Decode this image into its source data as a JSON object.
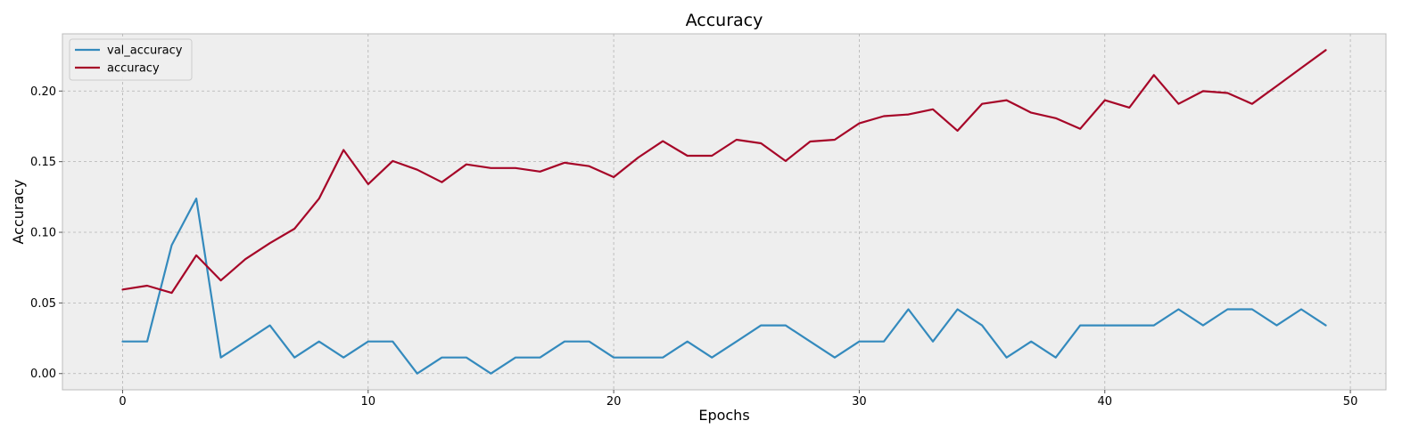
{
  "chart_data": {
    "type": "line",
    "title": "Accuracy",
    "xlabel": "Epochs",
    "ylabel": "Accuracy",
    "xlim": [
      -2.45,
      51.45
    ],
    "ylim": [
      -0.0115,
      0.2405
    ],
    "xticks": [
      0,
      10,
      20,
      30,
      40,
      50
    ],
    "xtick_labels": [
      "0",
      "10",
      "20",
      "30",
      "40",
      "50"
    ],
    "yticks": [
      0,
      0.05,
      0.1,
      0.15,
      0.2
    ],
    "ytick_labels": [
      "0.00",
      "0.05",
      "0.10",
      "0.15",
      "0.20"
    ],
    "grid": true,
    "legend_position": "top-left",
    "x": [
      0,
      1,
      2,
      3,
      4,
      5,
      6,
      7,
      8,
      9,
      10,
      11,
      12,
      13,
      14,
      15,
      16,
      17,
      18,
      19,
      20,
      21,
      22,
      23,
      24,
      25,
      26,
      27,
      28,
      29,
      30,
      31,
      32,
      33,
      34,
      35,
      36,
      37,
      38,
      39,
      40,
      41,
      42,
      43,
      44,
      45,
      46,
      47,
      48,
      49
    ],
    "series": [
      {
        "name": "val_accuracy",
        "color": "#348abd",
        "values": [
          0.0227,
          0.0227,
          0.0909,
          0.1239,
          0.0114,
          0.0227,
          0.0341,
          0.0114,
          0.0227,
          0.0114,
          0.0227,
          0.0227,
          0.0,
          0.0114,
          0.0114,
          0.0,
          0.0114,
          0.0114,
          0.0227,
          0.0227,
          0.0114,
          0.0114,
          0.0114,
          0.0227,
          0.0114,
          0.0227,
          0.0341,
          0.0341,
          0.0227,
          0.0114,
          0.0227,
          0.0227,
          0.0455,
          0.0227,
          0.0455,
          0.0341,
          0.0114,
          0.0227,
          0.0114,
          0.0341,
          0.0341,
          0.0341,
          0.0341,
          0.0455,
          0.0341,
          0.0455,
          0.0455,
          0.0341,
          0.0455,
          0.0341
        ]
      },
      {
        "name": "accuracy",
        "color": "#a60628",
        "values": [
          0.0595,
          0.0622,
          0.0571,
          0.0837,
          0.0659,
          0.081,
          0.0923,
          0.1025,
          0.1238,
          0.1583,
          0.1341,
          0.1505,
          0.1443,
          0.1355,
          0.1481,
          0.1455,
          0.1455,
          0.143,
          0.1493,
          0.1468,
          0.1391,
          0.1529,
          0.1645,
          0.1542,
          0.1542,
          0.1655,
          0.163,
          0.1505,
          0.1643,
          0.1655,
          0.1771,
          0.1822,
          0.1834,
          0.1871,
          0.1719,
          0.1909,
          0.1935,
          0.1847,
          0.1808,
          0.1733,
          0.1935,
          0.1883,
          0.2113,
          0.1909,
          0.1999,
          0.1986,
          0.1909,
          0.2036,
          0.2163,
          0.229
        ]
      }
    ]
  }
}
